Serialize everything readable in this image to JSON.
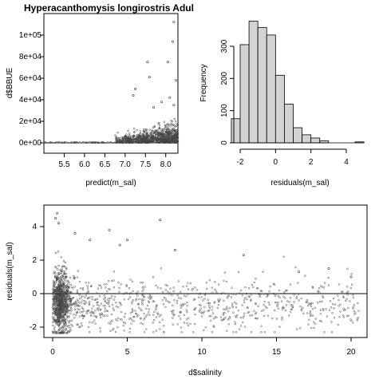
{
  "chart_data": [
    {
      "type": "scatter",
      "title": "Hyperacanthomysis longirostris Adul",
      "xlabel": "predict(m_sal)",
      "ylabel": "d$BBUE",
      "xlim": [
        5.0,
        8.3
      ],
      "ylim": [
        0,
        115000
      ],
      "x_ticks": [
        "5.5",
        "6.0",
        "6.5",
        "7.0",
        "7.5",
        "8.0"
      ],
      "x_tick_values": [
        5.5,
        6.0,
        6.5,
        7.0,
        7.5,
        8.0
      ],
      "y_ticks": [
        "0e+00",
        "2e+04",
        "4e+04",
        "6e+04",
        "8e+04",
        "1e+05"
      ],
      "y_tick_values": [
        0,
        20000,
        40000,
        60000,
        80000,
        100000
      ],
      "reference_line": {
        "y": 0
      },
      "points_outliers": [
        {
          "x": 8.2,
          "y": 112000
        },
        {
          "x": 8.17,
          "y": 94000
        },
        {
          "x": 7.55,
          "y": 75000
        },
        {
          "x": 8.05,
          "y": 75000
        },
        {
          "x": 7.6,
          "y": 61000
        },
        {
          "x": 8.25,
          "y": 58000
        },
        {
          "x": 7.25,
          "y": 50000
        },
        {
          "x": 7.2,
          "y": 44000
        },
        {
          "x": 8.1,
          "y": 42000
        },
        {
          "x": 7.9,
          "y": 38000
        },
        {
          "x": 8.2,
          "y": 35000
        },
        {
          "x": 7.7,
          "y": 33000
        }
      ],
      "point_cloud_summary": "Most points near zero; dense band between x 6.8 and 8.3 rising to ~25000"
    },
    {
      "type": "bar",
      "subtype": "histogram",
      "title": "",
      "xlabel": "residuals(m_sal)",
      "ylabel": "Frequency",
      "bin_width": 0.5,
      "bin_start": -2.5,
      "values": [
        75,
        305,
        378,
        358,
        335,
        210,
        120,
        47,
        25,
        15,
        6,
        0,
        0,
        0,
        3
      ],
      "xlim": [
        -2.7,
        5.0
      ],
      "ylim": [
        0,
        400
      ],
      "x_ticks": [
        "-2",
        "0",
        "2",
        "4"
      ],
      "x_tick_values": [
        -2,
        0,
        2,
        4
      ],
      "y_ticks": [
        "0",
        "100",
        "200",
        "300"
      ],
      "y_tick_values": [
        0,
        100,
        200,
        300
      ]
    },
    {
      "type": "scatter",
      "title": "",
      "xlabel": "d$salinity",
      "ylabel": "residuals(m_sal)",
      "xlim": [
        -1.0,
        21.5
      ],
      "ylim": [
        -2.6,
        5.1
      ],
      "x_ticks": [
        "0",
        "5",
        "10",
        "15",
        "20"
      ],
      "x_tick_values": [
        0,
        5,
        10,
        15,
        20
      ],
      "y_ticks": [
        "-2",
        "0",
        "2",
        "4"
      ],
      "y_tick_values": [
        -2,
        0,
        2,
        4
      ],
      "reference_line": {
        "y": 0
      },
      "points_outliers": [
        {
          "x": 0.3,
          "y": 4.8
        },
        {
          "x": 0.2,
          "y": 4.5
        },
        {
          "x": 0.4,
          "y": 4.2
        },
        {
          "x": 1.5,
          "y": 3.6
        },
        {
          "x": 3.8,
          "y": 3.8
        },
        {
          "x": 7.2,
          "y": 4.4
        },
        {
          "x": 5.0,
          "y": 3.2
        },
        {
          "x": 2.5,
          "y": 3.2
        },
        {
          "x": 4.5,
          "y": 2.9
        },
        {
          "x": 8.2,
          "y": 2.6
        },
        {
          "x": 12.8,
          "y": 2.3
        },
        {
          "x": 18.5,
          "y": 1.5
        },
        {
          "x": 20.0,
          "y": 1.0
        },
        {
          "x": 16.5,
          "y": 1.3
        }
      ],
      "point_cloud_summary": "Dense vertical cluster near salinity 0-1 spanning -2.3 to 2.5; sparser spread to salinity 20"
    }
  ]
}
